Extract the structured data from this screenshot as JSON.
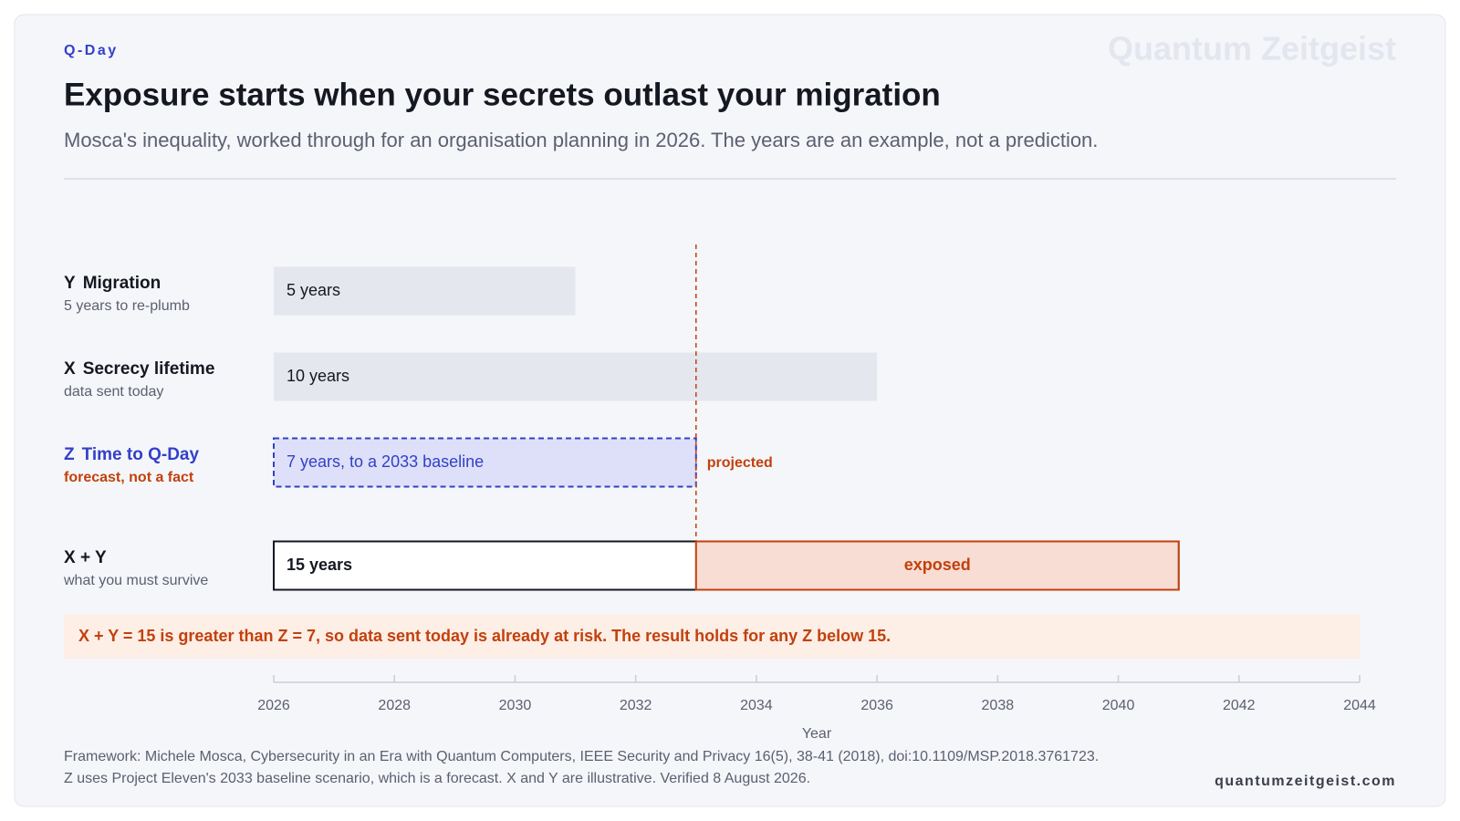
{
  "chart_data": {
    "type": "timeline-bar",
    "kicker": "Q-Day",
    "brand": "Quantum Zeitgeist",
    "title": "Exposure starts when your secrets outlast your migration",
    "subtitle": "Mosca's inequality, worked through for an organisation planning in 2026. The years are an example, not a prediction.",
    "letters": [
      "Y",
      "X",
      "Z",
      "X + Y"
    ],
    "categories": [
      "Migration",
      "Secrecy lifetime",
      "Time to Q-Day",
      null
    ],
    "notes": [
      "5 years to re-plumb",
      "data sent today",
      "forecast, not a fact",
      "what you must survive"
    ],
    "start": 2026,
    "values": [
      5,
      10,
      7,
      15
    ],
    "value_labels": [
      "5 years",
      "10 years",
      "7 years, to a 2033 baseline",
      "15 years"
    ],
    "marker_label": "projected",
    "exposed_label": "exposed",
    "callout": "X + Y = 15 is greater than Z = 7, so data sent today is already at risk. The result holds for any Z below 15.",
    "xlabel": "Year",
    "xlim": [
      2026,
      2044
    ],
    "xticks": [
      2026,
      2028,
      2030,
      2032,
      2034,
      2036,
      2038,
      2040,
      2042,
      2044
    ],
    "source": [
      "Framework: Michele Mosca, Cybersecurity in an Era with Quantum Computers, IEEE Security and Privacy 16(5), 38-41 (2018), doi:10.1109/MSP.2018.3761723.",
      "Z uses Project Eleven's 2033 baseline scenario, which is a forecast. X and Y are illustrative. Verified 8 August 2026."
    ],
    "site": "quantumzeitgeist.com"
  }
}
